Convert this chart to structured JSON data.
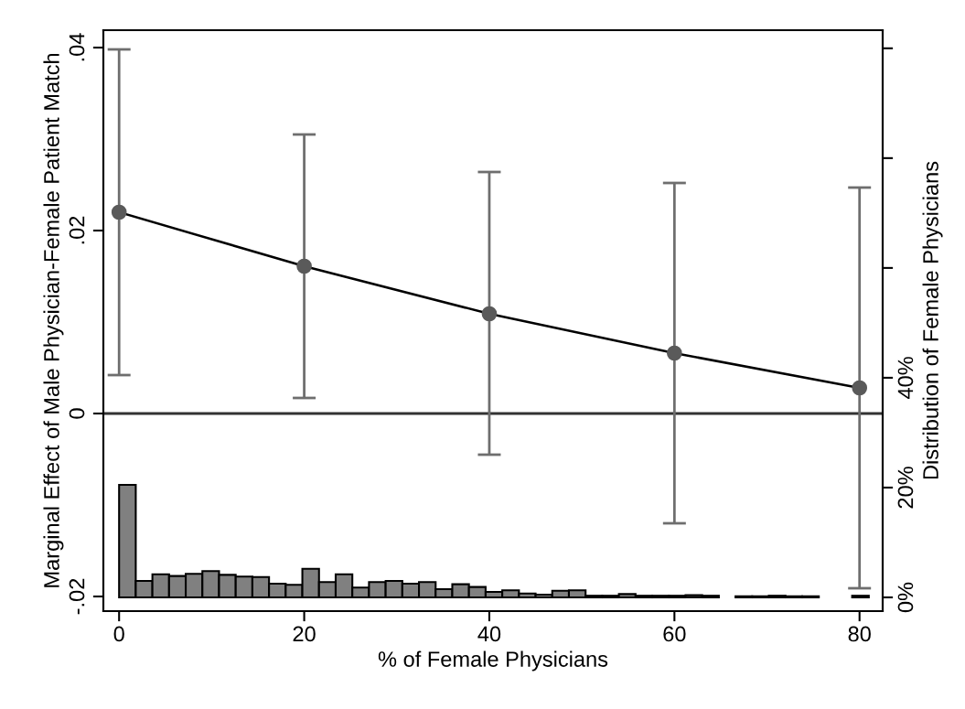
{
  "chart_data": {
    "type": "line",
    "xlabel": "% of Female Physicians",
    "ylabel": "Marginal Effect of Male Physician-Female Patient Match",
    "y2label": "Distribution of Female Physicians",
    "xlim": [
      -1.7,
      82.5
    ],
    "xticks": [
      0,
      20,
      40,
      60,
      80
    ],
    "ylim": [
      -0.0216,
      0.0419
    ],
    "yticks": [
      {
        "value": -0.02,
        "label": "-.02"
      },
      {
        "value": 0,
        "label": "0"
      },
      {
        "value": 0.02,
        "label": ".02"
      },
      {
        "value": 0.04,
        "label": ".04"
      }
    ],
    "y2lim": [
      -2.5,
      103.3
    ],
    "y2ticks": [
      {
        "value": 0,
        "label": "0%"
      },
      {
        "value": 20,
        "label": "20%"
      },
      {
        "value": 40,
        "label": "40%"
      },
      {
        "value": 60,
        "label": null
      },
      {
        "value": 80,
        "label": null
      },
      {
        "value": 100,
        "label": null
      }
    ],
    "marker": "circle",
    "line_style": "solid",
    "grid": false,
    "legend": false,
    "ref_lines": [
      {
        "axis": "y",
        "value": 0,
        "label": null,
        "color": "#333333"
      }
    ],
    "series": [
      {
        "type": "histogram",
        "axis": "y2",
        "color": "#808080",
        "bins": [
          0,
          1.8,
          3.6,
          5.4,
          7.2,
          9,
          10.8,
          12.6,
          14.4,
          16.2,
          18,
          19.8,
          21.6,
          23.4,
          25.2,
          27,
          28.8,
          30.6,
          32.4,
          34.2,
          36,
          37.8,
          39.6,
          41.4,
          43.2,
          45,
          46.8,
          48.6,
          50.4,
          52.2,
          54,
          55.8,
          57.6,
          59.4,
          61.2,
          63,
          64.8,
          66.6,
          68.4,
          70.2,
          72,
          73.8,
          75.6,
          77.4,
          79.2,
          81
        ],
        "values": [
          20.5,
          3.0,
          4.2,
          3.9,
          4.3,
          4.8,
          4.1,
          3.8,
          3.7,
          2.5,
          2.3,
          5.2,
          2.8,
          4.2,
          1.8,
          2.8,
          3.0,
          2.5,
          2.8,
          1.5,
          2.4,
          1.9,
          1.0,
          1.3,
          0.7,
          0.5,
          1.2,
          1.3,
          0.3,
          0.3,
          0.6,
          0.3,
          0.3,
          0.3,
          0.4,
          0.3,
          0,
          0.2,
          0.2,
          0.3,
          0.2,
          0.2,
          0,
          0,
          0.3
        ]
      },
      {
        "axis": "y",
        "color": "#000000",
        "x": [
          0,
          20,
          40,
          60,
          80
        ],
        "values": [
          0.022,
          0.0161,
          0.0109,
          0.0066,
          0.0028
        ],
        "errors": [
          [
            0.0042,
            0.0398
          ],
          [
            0.0017,
            0.0305
          ],
          [
            -0.0045,
            0.0264
          ],
          [
            -0.012,
            0.0252
          ],
          [
            -0.0191,
            0.0247
          ]
        ]
      }
    ]
  }
}
